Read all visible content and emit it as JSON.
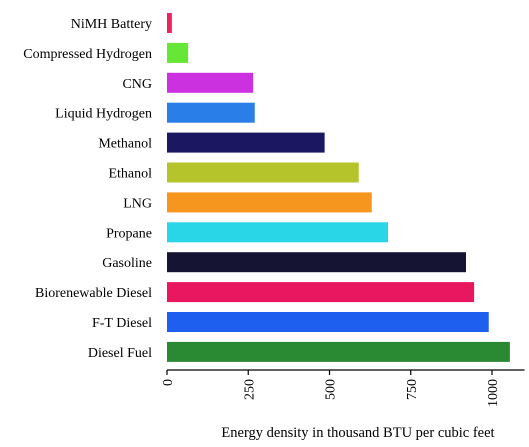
{
  "chart_data": {
    "type": "bar",
    "orientation": "horizontal",
    "xlabel": "Energy density in thousand BTU per cubic feet",
    "ylabel": "",
    "xlim": [
      0,
      1100
    ],
    "xticks": [
      "0",
      "250",
      "500",
      "750",
      "1000"
    ],
    "grid": false,
    "legend": "none",
    "categories": [
      "NiMH Battery",
      "Compressed Hydrogen",
      "CNG",
      "Liquid Hydrogen",
      "Methanol",
      "Ethanol",
      "LNG",
      "Propane",
      "Gasoline",
      "Biorenewable Diesel",
      "F-T Diesel",
      "Diesel Fuel"
    ],
    "values": [
      15,
      65,
      265,
      270,
      485,
      590,
      630,
      680,
      920,
      945,
      990,
      1055
    ],
    "colors": [
      "#f0215f",
      "#66e635",
      "#cc31e0",
      "#2a7ee8",
      "#1b1760",
      "#b5c42a",
      "#f7961f",
      "#29d6e8",
      "#151533",
      "#e8175f",
      "#1f5ff0",
      "#2a8a33"
    ]
  }
}
